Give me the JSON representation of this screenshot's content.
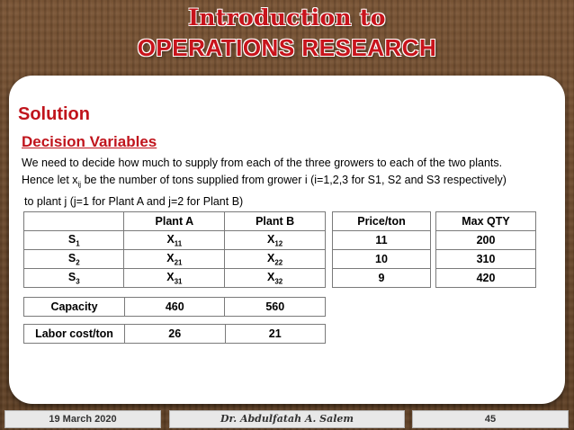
{
  "header": {
    "title_line1": "Introduction to",
    "title_line2": "OPERATIONS RESEARCH"
  },
  "content": {
    "solution_heading": "Solution",
    "subheading": "Decision Variables",
    "paragraph": {
      "line1": "We need to decide how much to supply from each of the three growers to each of the two plants.",
      "line2_pre": "Hence let x",
      "line2_sub": "ij",
      "line2_post": " be the number of tons supplied from grower i (i=1,2,3 for S1, S2 and S3 respectively)",
      "line3": "to plant j (j=1 for Plant A and j=2 for Plant B)"
    }
  },
  "main_table": {
    "headers": [
      "",
      "Plant A",
      "Plant B"
    ],
    "rows": [
      {
        "label": "S",
        "label_sub": "1",
        "a": "X",
        "a_sub": "11",
        "b": "X",
        "b_sub": "12"
      },
      {
        "label": "S",
        "label_sub": "2",
        "a": "X",
        "a_sub": "21",
        "b": "X",
        "b_sub": "22"
      },
      {
        "label": "S",
        "label_sub": "3",
        "a": "X",
        "a_sub": "31",
        "b": "X",
        "b_sub": "32"
      }
    ]
  },
  "price_table": {
    "header": "Price/ton",
    "values": [
      "11",
      "10",
      "9"
    ]
  },
  "qty_table": {
    "header": "Max QTY",
    "values": [
      "200",
      "310",
      "420"
    ]
  },
  "capacity": {
    "label": "Capacity",
    "a": "460",
    "b": "560"
  },
  "labor": {
    "label": "Labor cost/ton",
    "a": "26",
    "b": "21"
  },
  "footer": {
    "date": "19 March 2020",
    "author": "Dr. Abdulfatah A. Salem",
    "page": "45"
  }
}
